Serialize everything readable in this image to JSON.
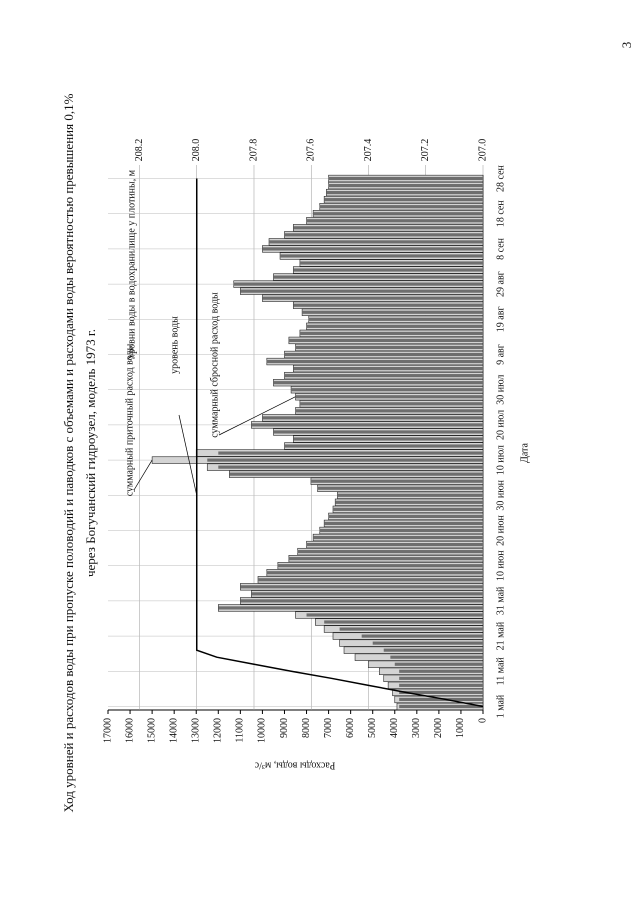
{
  "page_number": "3",
  "chart_data": {
    "type": "bar",
    "title": "Ход уровней и расходов воды при пропуске половодий и паводков с объемами и расходами воды вероятностью превышения 0,1%",
    "subtitle": "через Богучанский гидроузел, модель 1973 г.",
    "x_label": "Дата",
    "y_label": "Расходы воды, м³/с",
    "y2_label": "Уровни воды в водохранилище у плотины, м",
    "categories": [
      "1 май",
      null,
      null,
      null,
      null,
      "11 май",
      null,
      null,
      null,
      null,
      "21 май",
      null,
      null,
      null,
      null,
      "31 май",
      null,
      null,
      null,
      null,
      "10 июн",
      null,
      null,
      null,
      null,
      "20 июн",
      null,
      null,
      null,
      null,
      "30 июн",
      null,
      null,
      null,
      null,
      "10 июл",
      null,
      null,
      null,
      null,
      "20 июл",
      null,
      null,
      null,
      null,
      "30 июл",
      null,
      null,
      null,
      null,
      "9 авг",
      null,
      null,
      null,
      null,
      "19 авг",
      null,
      null,
      null,
      null,
      "29 авг",
      null,
      null,
      null,
      null,
      "8 сен",
      null,
      null,
      null,
      null,
      "18 сен",
      null,
      null,
      null,
      null,
      "28 сен"
    ],
    "series": [
      {
        "name": "суммарный приточный расход воды",
        "color": "#d4d4d4",
        "values": [
          3900,
          4000,
          4100,
          4300,
          4500,
          4700,
          5200,
          5800,
          6300,
          6500,
          6800,
          7200,
          7600,
          8500,
          12000,
          11000,
          10500,
          11000,
          10200,
          9800,
          9300,
          8800,
          8400,
          8000,
          7700,
          7400,
          7200,
          7000,
          6800,
          6700,
          6600,
          7500,
          7800,
          11500,
          12500,
          15000,
          13000,
          9000,
          8600,
          9500,
          10500,
          10000,
          8500,
          8300,
          8500,
          8700,
          9500,
          9000,
          8600,
          9800,
          9000,
          8500,
          8800,
          8300,
          8000,
          7900,
          8200,
          8600,
          10000,
          11000,
          11300,
          9500,
          8600,
          8300,
          9200,
          10000,
          9700,
          9000,
          8600,
          8000,
          7700,
          7400,
          7200,
          7100,
          7000,
          7000
        ]
      },
      {
        "name": "суммарный сбросной расход воды",
        "color": "#6e6e6e",
        "values": [
          3800,
          3800,
          3800,
          3800,
          3800,
          3800,
          4000,
          4200,
          4500,
          5000,
          5500,
          6500,
          7200,
          8000,
          12000,
          11000,
          10500,
          11000,
          10200,
          9800,
          9300,
          8800,
          8400,
          8000,
          7700,
          7400,
          7200,
          7000,
          6800,
          6700,
          6600,
          7500,
          7800,
          11500,
          12000,
          12500,
          12000,
          9000,
          8600,
          9500,
          10500,
          10000,
          8500,
          8300,
          8500,
          8700,
          9500,
          9000,
          8600,
          9800,
          9000,
          8500,
          8800,
          8300,
          8000,
          7900,
          8200,
          8600,
          10000,
          11000,
          11300,
          9500,
          8600,
          8300,
          9200,
          10000,
          9700,
          9000,
          8600,
          8000,
          7700,
          7400,
          7200,
          7100,
          7000,
          7000
        ]
      },
      {
        "name": "уровень воды",
        "color": "#000000",
        "type": "line",
        "axis": "y2",
        "values": [
          207.0,
          207.13,
          207.27,
          207.4,
          207.53,
          207.67,
          207.8,
          207.93,
          208.0,
          208.0,
          208.0,
          208.0,
          208.0,
          208.0,
          208.0,
          208.0,
          208.0,
          208.0,
          208.0,
          208.0,
          208.0,
          208.0,
          208.0,
          208.0,
          208.0,
          208.0,
          208.0,
          208.0,
          208.0,
          208.0,
          208.0,
          208.0,
          208.0,
          208.0,
          208.0,
          208.0,
          208.0,
          208.0,
          208.0,
          208.0,
          208.0,
          208.0,
          208.0,
          208.0,
          208.0,
          208.0,
          208.0,
          208.0,
          208.0,
          208.0,
          208.0,
          208.0,
          208.0,
          208.0,
          208.0,
          208.0,
          208.0,
          208.0,
          208.0,
          208.0,
          208.0,
          208.0,
          208.0,
          208.0,
          208.0,
          208.0,
          208.0,
          208.0,
          208.0,
          208.0,
          208.0,
          208.0,
          208.0,
          208.0,
          208.0,
          208.0
        ]
      }
    ],
    "ylim": [
      0,
      17000
    ],
    "yticks": [
      0,
      1000,
      2000,
      3000,
      4000,
      5000,
      6000,
      7000,
      8000,
      9000,
      10000,
      11000,
      12000,
      13000,
      14000,
      15000,
      16000,
      17000
    ],
    "y2lim": [
      207.0,
      208.31
    ],
    "y2ticks": [
      {
        "value": 207.0,
        "label": "207.0"
      },
      207.2,
      207.4,
      207.6,
      207.8,
      {
        "value": 208.0,
        "label": "208.0"
      },
      208.2
    ]
  }
}
